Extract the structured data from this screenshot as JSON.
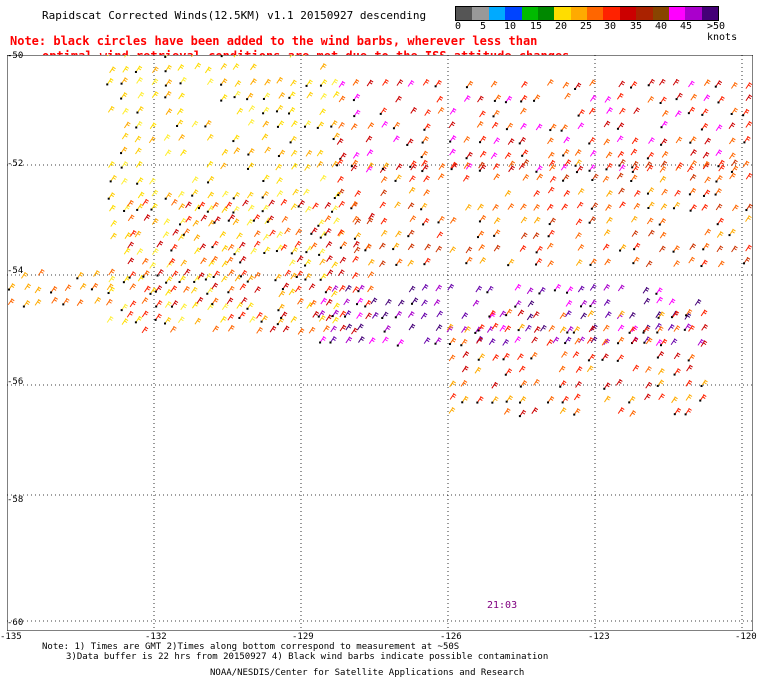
{
  "header": {
    "title": "Rapidscat Corrected Winds(12.5KM) v1.1 20150927 descending",
    "note_line1": "Note: black circles have been added to the wind barbs, wherever less than",
    "note_line2": "optimal wind retrieval conditions are met due to the ISS attitude changes."
  },
  "colorbar": {
    "colors": [
      "#555555",
      "#999999",
      "#00aaff",
      "#0044ff",
      "#00bb00",
      "#008800",
      "#ffdd00",
      "#ffaa00",
      "#ff6600",
      "#ff2200",
      "#cc0000",
      "#aa2200",
      "#884400",
      "#ff00ff",
      "#aa00cc",
      "#440077"
    ],
    "labels": [
      "0",
      "5",
      "10",
      "15",
      "20",
      "25",
      "30",
      "35",
      "40",
      "45",
      ">50 knots"
    ]
  },
  "axes": {
    "lat_labels": [
      "-50",
      "-52",
      "-54",
      "-56",
      "-58",
      "-60"
    ],
    "lon_labels": [
      "-135",
      "-132",
      "-129",
      "-126",
      "-123",
      "-120"
    ]
  },
  "time_label": "21:03",
  "footer": {
    "line1": "Note: 1) Times are GMT 2)Times along bottom correspond to measurement at ~50S",
    "line2": "3)Data buffer is 22 hrs from 20150927 4) Black wind barbs indicate possible contamination",
    "line3": "NOAA/NESDIS/Center for Satellite Applications and Research"
  }
}
